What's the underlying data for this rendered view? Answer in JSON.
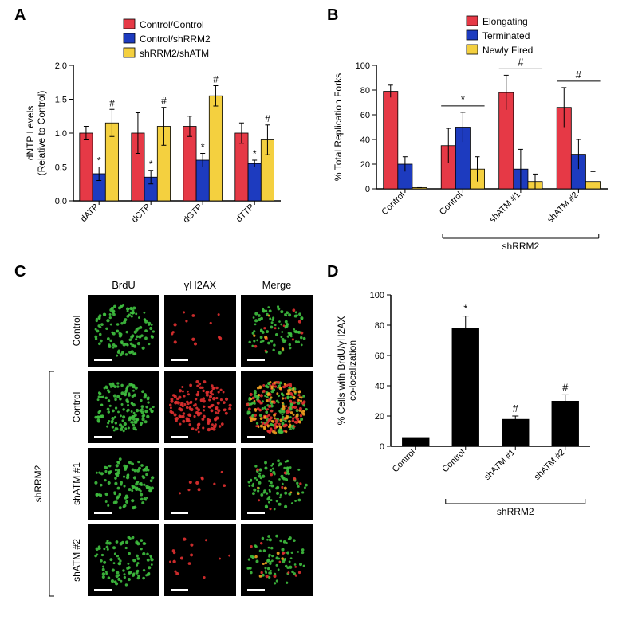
{
  "panelA": {
    "label": "A",
    "type": "bar",
    "legend": {
      "items": [
        {
          "label": "Control/Control",
          "color": "#e63946"
        },
        {
          "label": "Control/shRRM2",
          "color": "#1d3bbf"
        },
        {
          "label": "shRRM2/shATM",
          "color": "#f4d03f"
        }
      ]
    },
    "ylabel": "dNTP Levels\n(Relative to Control)",
    "ylim": [
      0,
      2.0
    ],
    "yticks": [
      0,
      0.5,
      1.0,
      1.5,
      2.0
    ],
    "categories": [
      "dATP",
      "dCTP",
      "dGTP",
      "dTTP"
    ],
    "series": [
      {
        "values": [
          1.0,
          1.0,
          1.1,
          1.0
        ],
        "err": [
          0.1,
          0.3,
          0.15,
          0.15
        ],
        "color": "#e63946",
        "marks": [
          "",
          "",
          "",
          ""
        ]
      },
      {
        "values": [
          0.4,
          0.35,
          0.6,
          0.55
        ],
        "err": [
          0.1,
          0.1,
          0.1,
          0.05
        ],
        "color": "#1d3bbf",
        "marks": [
          "*",
          "*",
          "*",
          "*"
        ]
      },
      {
        "values": [
          1.15,
          1.1,
          1.55,
          0.9
        ],
        "err": [
          0.2,
          0.28,
          0.15,
          0.22
        ],
        "color": "#f4d03f",
        "marks": [
          "#",
          "#",
          "#",
          "#"
        ]
      }
    ],
    "label_fontsize": 12,
    "tick_fontsize": 11,
    "mark_fontsize": 12,
    "bar_width": 0.25,
    "axis_color": "#000000",
    "bg": "#ffffff"
  },
  "panelB": {
    "label": "B",
    "type": "bar",
    "legend": {
      "items": [
        {
          "label": "Elongating",
          "color": "#e63946"
        },
        {
          "label": "Terminated",
          "color": "#1d3bbf"
        },
        {
          "label": "Newly Fired",
          "color": "#f4d03f"
        }
      ]
    },
    "ylabel": "% Total Replication Forks",
    "ylim": [
      0,
      100
    ],
    "yticks": [
      0,
      20,
      40,
      60,
      80,
      100
    ],
    "groups": [
      "Control",
      "Control",
      "shATM #1",
      "shATM #2"
    ],
    "bracket_label": "shRRM2",
    "bracket_span": [
      1,
      3
    ],
    "group_sig": [
      "",
      "*",
      "#",
      "#"
    ],
    "series": [
      {
        "values": [
          79,
          35,
          78,
          66
        ],
        "err": [
          5,
          14,
          14,
          16
        ],
        "color": "#e63946"
      },
      {
        "values": [
          20,
          50,
          16,
          28
        ],
        "err": [
          6,
          12,
          16,
          12
        ],
        "color": "#1d3bbf"
      },
      {
        "values": [
          1,
          16,
          6,
          6
        ],
        "err": [
          0,
          10,
          6,
          8
        ],
        "color": "#f4d03f"
      }
    ],
    "label_fontsize": 12,
    "tick_fontsize": 11,
    "bar_width": 0.25,
    "axis_color": "#000000"
  },
  "panelC": {
    "label": "C",
    "col_headers": [
      "BrdU",
      "γH2AX",
      "Merge"
    ],
    "row_labels": [
      "Control",
      "Control",
      "shATM #1",
      "shATM #2"
    ],
    "side_bracket_label": "shRRM2",
    "side_bracket_span": [
      1,
      3
    ],
    "cell_bg": "#000000",
    "color_brdu": "#3fbf3f",
    "color_gh2ax": "#e03030",
    "color_merge_overlap": "#f0a020",
    "scale_bar_color": "#ffffff",
    "header_fontsize": 13,
    "row_fontsize": 12,
    "densities": [
      {
        "brdu": 0.45,
        "gh2ax": 0.05,
        "overlap": 0.02
      },
      {
        "brdu": 0.55,
        "gh2ax": 0.55,
        "overlap": 0.4
      },
      {
        "brdu": 0.45,
        "gh2ax": 0.04,
        "overlap": 0.02
      },
      {
        "brdu": 0.35,
        "gh2ax": 0.06,
        "overlap": 0.03
      }
    ]
  },
  "panelD": {
    "label": "D",
    "type": "bar",
    "ylabel": "% Cells with BrdU/γH2AX\nco-localization",
    "ylim": [
      0,
      100
    ],
    "yticks": [
      0,
      20,
      40,
      60,
      80,
      100
    ],
    "categories": [
      "Control",
      "Control",
      "shATM #1",
      "shATM #2"
    ],
    "values": [
      6,
      78,
      18,
      30
    ],
    "err": [
      0,
      8,
      2,
      4
    ],
    "marks": [
      "",
      "*",
      "#",
      "#"
    ],
    "bar_color": "#000000",
    "bracket_label": "shRRM2",
    "bracket_span": [
      1,
      3
    ],
    "label_fontsize": 12,
    "tick_fontsize": 11,
    "mark_fontsize": 13,
    "axis_color": "#000000"
  }
}
